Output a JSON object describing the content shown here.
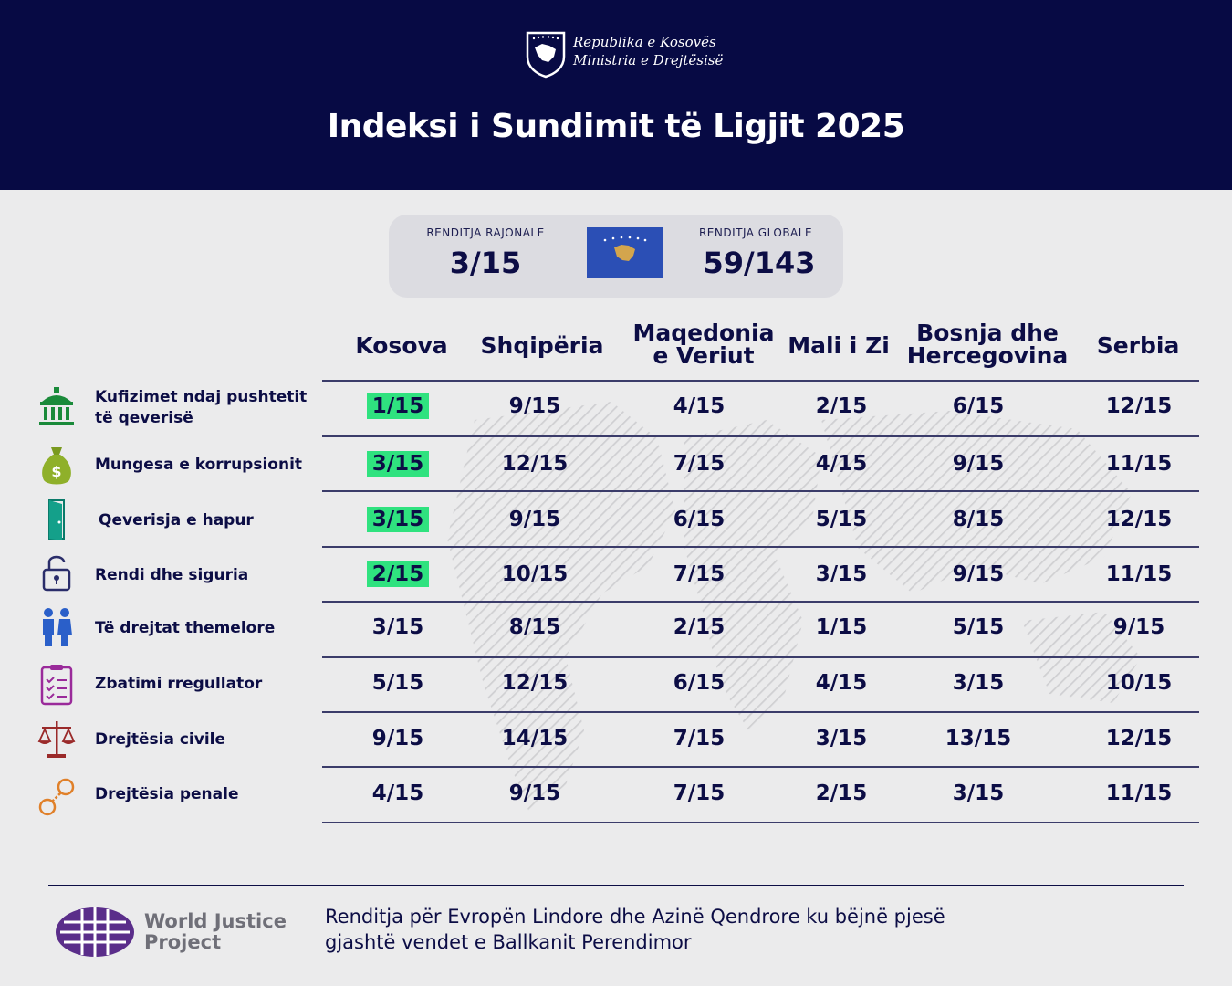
{
  "header": {
    "ministry_line1": "Republika e Kosovës",
    "ministry_line2": "Ministria e Drejtësisë",
    "title": "Indeksi i Sundimit të Ligjit 2025",
    "background": "#070a44"
  },
  "ranking": {
    "regional_label": "RENDITJA RAJONALE",
    "regional_value": "3/15",
    "global_label": "RENDITJA GLOBALE",
    "global_value": "59/143"
  },
  "table": {
    "columns": [
      {
        "line1": "Kosova",
        "line2": ""
      },
      {
        "line1": "Shqipëria",
        "line2": ""
      },
      {
        "line1": "Maqedonia",
        "line2": "e Veriut"
      },
      {
        "line1": "Mali i Zi",
        "line2": ""
      },
      {
        "line1": "Bosnja dhe",
        "line2": "Hercegovina"
      },
      {
        "line1": "Serbia",
        "line2": ""
      }
    ],
    "rows": [
      {
        "icon": "government-building-icon",
        "label_line1": "Kufizimet ndaj pushtetit",
        "label_line2": "të qeverisë",
        "values": [
          "1/15",
          "9/15",
          "4/15",
          "2/15",
          "6/15",
          "12/15"
        ],
        "highlight_first": true
      },
      {
        "icon": "money-bag-icon",
        "label_line1": "Mungesa e korrupsionit",
        "label_line2": "",
        "values": [
          "3/15",
          "12/15",
          "7/15",
          "4/15",
          "9/15",
          "11/15"
        ],
        "highlight_first": true
      },
      {
        "icon": "open-door-icon",
        "label_line1": "Qeverisja e hapur",
        "label_line2": "",
        "values": [
          "3/15",
          "9/15",
          "6/15",
          "5/15",
          "8/15",
          "12/15"
        ],
        "highlight_first": true
      },
      {
        "icon": "padlock-icon",
        "label_line1": "Rendi dhe siguria",
        "label_line2": "",
        "values": [
          "2/15",
          "10/15",
          "7/15",
          "3/15",
          "9/15",
          "11/15"
        ],
        "highlight_first": true
      },
      {
        "icon": "people-icon",
        "label_line1": "Të drejtat themelore",
        "label_line2": "",
        "values": [
          "3/15",
          "8/15",
          "2/15",
          "1/15",
          "5/15",
          "9/15"
        ],
        "highlight_first": false
      },
      {
        "icon": "checklist-icon",
        "label_line1": "Zbatimi rregullator",
        "label_line2": "",
        "values": [
          "5/15",
          "12/15",
          "6/15",
          "4/15",
          "3/15",
          "10/15"
        ],
        "highlight_first": false
      },
      {
        "icon": "scales-icon",
        "label_line1": "Drejtësia civile",
        "label_line2": "",
        "values": [
          "9/15",
          "14/15",
          "7/15",
          "3/15",
          "13/15",
          "12/15"
        ],
        "highlight_first": false
      },
      {
        "icon": "handcuffs-icon",
        "label_line1": "Drejtësia penale",
        "label_line2": "",
        "values": [
          "4/15",
          "9/15",
          "7/15",
          "2/15",
          "3/15",
          "11/15"
        ],
        "highlight_first": false
      }
    ],
    "highlight_color": "#2fe27f"
  },
  "footer": {
    "wjp_line1": "World Justice",
    "wjp_line2": "Project",
    "note_line1": "Renditja për Evropën Lindore dhe Azinë Qendrore ku bëjnë pjesë",
    "note_line2": "gjashtë vendet e Ballkanit Perendimor"
  }
}
